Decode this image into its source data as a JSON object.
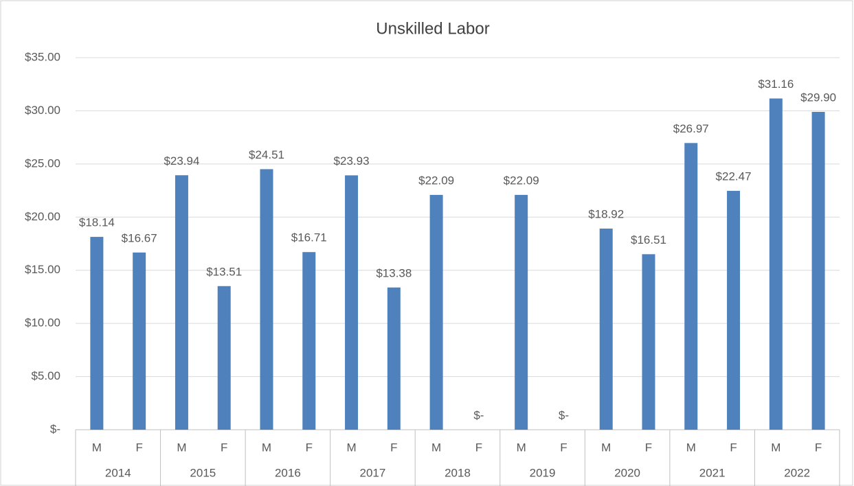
{
  "chart_data": {
    "type": "bar",
    "title": "Unskilled Labor",
    "categories": [
      "M",
      "F",
      "M",
      "F",
      "M",
      "F",
      "M",
      "F",
      "M",
      "F",
      "M",
      "F",
      "M",
      "F",
      "M",
      "F",
      "M",
      "F"
    ],
    "groups": [
      "2014",
      "2015",
      "2016",
      "2017",
      "2018",
      "2019",
      "2020",
      "2021",
      "2022"
    ],
    "values": [
      18.14,
      16.67,
      23.94,
      13.51,
      24.51,
      16.71,
      23.93,
      13.38,
      22.09,
      0,
      22.09,
      0,
      18.92,
      16.51,
      26.97,
      22.47,
      31.16,
      29.9
    ],
    "value_labels": [
      "$18.14",
      "$16.67",
      "$23.94",
      "$13.51",
      "$24.51",
      "$16.71",
      "$23.93",
      "$13.38",
      "$22.09",
      "$-",
      "$22.09",
      "$-",
      "$18.92",
      "$16.51",
      "$26.97",
      "$22.47",
      "$31.16",
      "$29.90"
    ],
    "color": "#4f81bd",
    "ylim": [
      0,
      35
    ],
    "yticks": [
      {
        "value": 0,
        "label": "$-"
      },
      {
        "value": 5,
        "label": "$5.00"
      },
      {
        "value": 10,
        "label": "$10.00"
      },
      {
        "value": 15,
        "label": "$15.00"
      },
      {
        "value": 20,
        "label": "$20.00"
      },
      {
        "value": 25,
        "label": "$25.00"
      },
      {
        "value": 30,
        "label": "$30.00"
      },
      {
        "value": 35,
        "label": "$35.00"
      }
    ],
    "grid": true
  }
}
